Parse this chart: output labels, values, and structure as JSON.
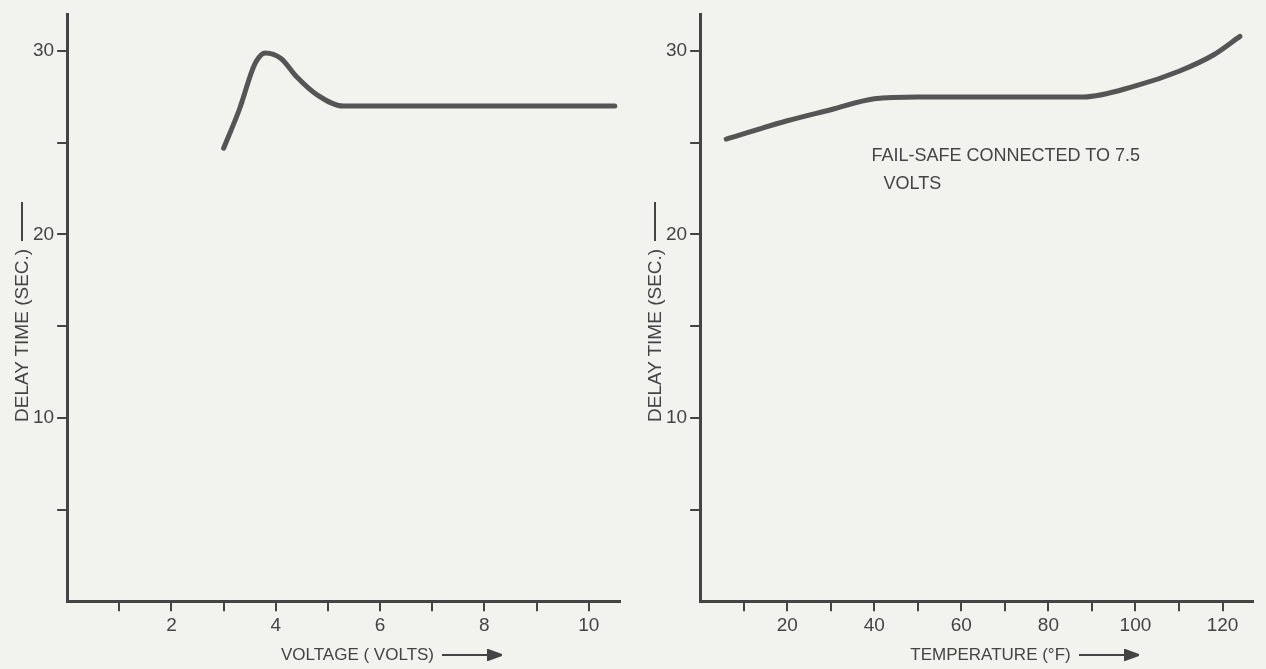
{
  "chart_data": [
    {
      "type": "line",
      "xlabel": "VOLTAGE ( VOLTS)",
      "ylabel": "DELAY TIME (SEC.)",
      "x": [
        3.0,
        3.3,
        3.6,
        3.8,
        4.1,
        4.4,
        4.8,
        5.3,
        6,
        8,
        10.5
      ],
      "series": [
        {
          "color": "#555555",
          "values": [
            24.7,
            26.8,
            29.3,
            29.9,
            29.6,
            28.6,
            27.6,
            27.0,
            27.0,
            27.0,
            27.0
          ]
        }
      ],
      "xlim": [
        0,
        10.6
      ],
      "ylim": [
        0,
        32
      ],
      "xticks": [
        {
          "value": 1,
          "label": null
        },
        2,
        {
          "value": 3,
          "label": null
        },
        4,
        {
          "value": 5,
          "label": null
        },
        6,
        {
          "value": 7,
          "label": null
        },
        8,
        {
          "value": 9,
          "label": null
        },
        10
      ],
      "yticks": [
        {
          "value": 5,
          "label": null
        },
        10,
        {
          "value": 15,
          "label": null
        },
        20,
        {
          "value": 25,
          "label": null
        },
        30
      ],
      "grid": false,
      "legend": false,
      "marker": "none",
      "line_style": "solid"
    },
    {
      "type": "line",
      "xlabel": "TEMPERATURE (°F)",
      "ylabel": "DELAY TIME (SEC.)",
      "x": [
        6,
        20,
        30,
        40,
        50,
        70,
        88,
        100,
        110,
        118,
        124
      ],
      "series": [
        {
          "color": "#555555",
          "values": [
            25.2,
            26.2,
            26.8,
            27.4,
            27.5,
            27.5,
            27.5,
            28.1,
            28.9,
            29.8,
            30.8
          ]
        }
      ],
      "xlim": [
        0,
        127
      ],
      "ylim": [
        0,
        32
      ],
      "xticks": [
        {
          "value": 10,
          "label": null
        },
        20,
        {
          "value": 30,
          "label": null
        },
        40,
        {
          "value": 50,
          "label": null
        },
        60,
        {
          "value": 70,
          "label": null
        },
        80,
        {
          "value": 90,
          "label": null
        },
        100,
        {
          "value": 110,
          "label": null
        },
        120
      ],
      "yticks": [
        {
          "value": 5,
          "label": null
        },
        10,
        {
          "value": 15,
          "label": null
        },
        20,
        {
          "value": 25,
          "label": null
        },
        30
      ],
      "grid": false,
      "legend": false,
      "marker": "none",
      "line_style": "solid",
      "annotations": [
        "FAIL-SAFE CONNECTED TO 7.5 VOLTS"
      ]
    }
  ]
}
